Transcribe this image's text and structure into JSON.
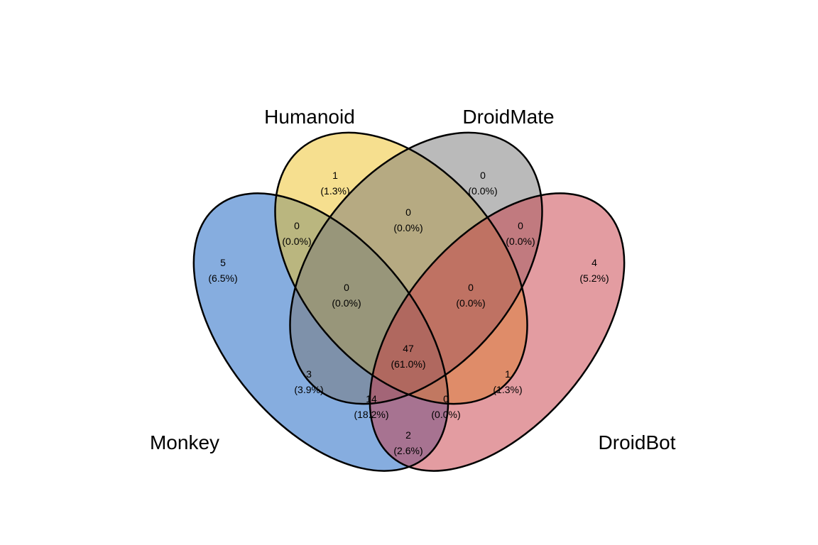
{
  "sets": [
    {
      "name": "Monkey",
      "color": "#0e5cbf"
    },
    {
      "name": "Humanoid",
      "color": "#eec020"
    },
    {
      "name": "DroidMate",
      "color": "#767676"
    },
    {
      "name": "DroidBot",
      "color": "#c73a44"
    }
  ],
  "regions": [
    {
      "id": "m",
      "sets": [
        "Monkey"
      ],
      "count": "5",
      "pct": "(6.5%)"
    },
    {
      "id": "h",
      "sets": [
        "Humanoid"
      ],
      "count": "1",
      "pct": "(1.3%)"
    },
    {
      "id": "dm",
      "sets": [
        "DroidMate"
      ],
      "count": "0",
      "pct": "(0.0%)"
    },
    {
      "id": "db",
      "sets": [
        "DroidBot"
      ],
      "count": "4",
      "pct": "(5.2%)"
    },
    {
      "id": "m-h",
      "sets": [
        "Monkey",
        "Humanoid"
      ],
      "count": "0",
      "pct": "(0.0%)"
    },
    {
      "id": "h-dm",
      "sets": [
        "Humanoid",
        "DroidMate"
      ],
      "count": "0",
      "pct": "(0.0%)"
    },
    {
      "id": "dm-db",
      "sets": [
        "DroidMate",
        "DroidBot"
      ],
      "count": "0",
      "pct": "(0.0%)"
    },
    {
      "id": "m-h-dm",
      "sets": [
        "Monkey",
        "Humanoid",
        "DroidMate"
      ],
      "count": "0",
      "pct": "(0.0%)"
    },
    {
      "id": "h-dm-db",
      "sets": [
        "Humanoid",
        "DroidMate",
        "DroidBot"
      ],
      "count": "0",
      "pct": "(0.0%)"
    },
    {
      "id": "m-dm",
      "sets": [
        "Monkey",
        "DroidMate"
      ],
      "count": "3",
      "pct": "(3.9%)"
    },
    {
      "id": "all",
      "sets": [
        "Monkey",
        "Humanoid",
        "DroidMate",
        "DroidBot"
      ],
      "count": "47",
      "pct": "(61.0%)"
    },
    {
      "id": "h-db",
      "sets": [
        "Humanoid",
        "DroidBot"
      ],
      "count": "1",
      "pct": "(1.3%)"
    },
    {
      "id": "m-dm-db",
      "sets": [
        "Monkey",
        "DroidMate",
        "DroidBot"
      ],
      "count": "14",
      "pct": "(18.2%)"
    },
    {
      "id": "m-h-db",
      "sets": [
        "Monkey",
        "Humanoid",
        "DroidBot"
      ],
      "count": "0",
      "pct": "(0.0%)"
    },
    {
      "id": "m-db",
      "sets": [
        "Monkey",
        "DroidBot"
      ],
      "count": "2",
      "pct": "(2.6%)"
    }
  ]
}
